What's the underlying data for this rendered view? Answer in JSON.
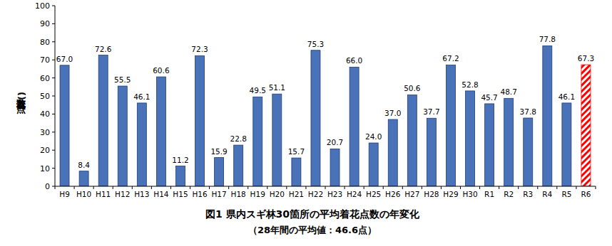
{
  "chart_data": {
    "type": "bar",
    "title": "図1 県内スギ林30箇所の平均着花点数の年変化",
    "subtitle": "（28年間の平均値：46.6点）",
    "y_label": "着花点数(点)",
    "categories": [
      "H9",
      "H10",
      "H11",
      "H12",
      "H13",
      "H14",
      "H15",
      "H16",
      "H17",
      "H18",
      "H19",
      "H20",
      "H21",
      "H22",
      "H23",
      "H24",
      "H25",
      "H26",
      "H27",
      "H28",
      "H29",
      "H30",
      "R1",
      "R2",
      "R3",
      "R4",
      "R5",
      "R6"
    ],
    "values": [
      67.0,
      8.4,
      72.6,
      55.5,
      46.1,
      60.6,
      11.2,
      72.3,
      15.9,
      22.8,
      49.5,
      51.1,
      15.7,
      75.3,
      20.7,
      66.0,
      24.0,
      37.0,
      50.6,
      37.7,
      67.2,
      52.8,
      45.7,
      48.7,
      37.8,
      77.8,
      46.1,
      67.3
    ],
    "value_labels": [
      "67.0",
      "8.4",
      "72.6",
      "55.5",
      "46.1",
      "60.6",
      "11.2",
      "72.3",
      "15.9",
      "22.8",
      "49.5",
      "51.1",
      "15.7",
      "75.3",
      "20.7",
      "66.0",
      "24.0",
      "37.0",
      "50.6",
      "37.7",
      "67.2",
      "52.8",
      "45.7",
      "48.7",
      "37.8",
      "77.8",
      "46.1",
      "67.3"
    ],
    "color": "#4a72b8",
    "colors": [
      "#4a72b8",
      "#4a72b8",
      "#4a72b8",
      "#4a72b8",
      "#4a72b8",
      "#4a72b8",
      "#4a72b8",
      "#4a72b8",
      "#4a72b8",
      "#4a72b8",
      "#4a72b8",
      "#4a72b8",
      "#4a72b8",
      "#4a72b8",
      "#4a72b8",
      "#4a72b8",
      "#4a72b8",
      "#4a72b8",
      "#4a72b8",
      "#4a72b8",
      "#4a72b8",
      "#4a72b8",
      "#4a72b8",
      "#4a72b8",
      "#4a72b8",
      "#4a72b8",
      "#4a72b8",
      "#ff0000"
    ],
    "ylim": [
      0,
      100
    ],
    "yticks": [
      0,
      10,
      20,
      30,
      40,
      50,
      60,
      70,
      80,
      90,
      100
    ],
    "grid": false,
    "data_labels": true
  }
}
